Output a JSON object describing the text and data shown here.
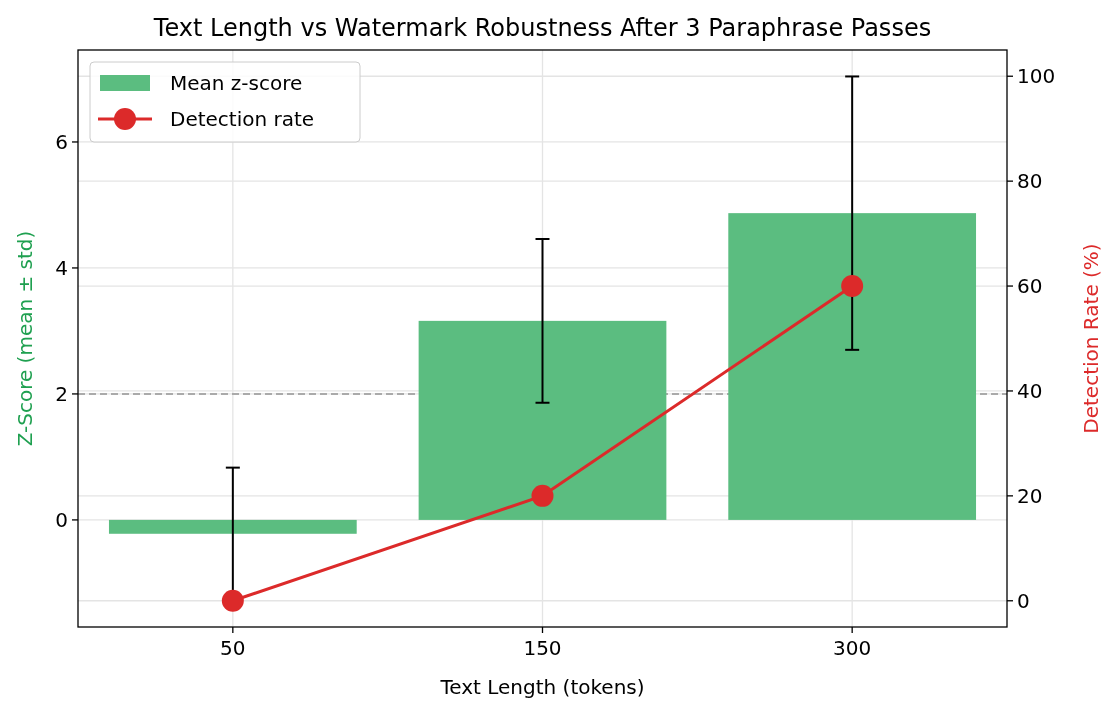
{
  "chart_data": {
    "type": "bar",
    "title": "Text Length vs Watermark Robustness After 3 Paraphrase Passes",
    "xlabel": "Text Length (tokens)",
    "ylabel": "Z-Score (mean ± std)",
    "y2label": "Detection Rate (%)",
    "categories": [
      "50",
      "150",
      "300"
    ],
    "series": [
      {
        "name": "Mean z-score",
        "color": "#5bbd80",
        "values": [
          -0.22,
          3.16,
          4.87
        ],
        "errors": [
          1.05,
          1.3,
          2.17
        ]
      },
      {
        "name": "Detection rate",
        "type": "line",
        "axis": "y2",
        "color": "#dc2a2a",
        "values": [
          0,
          20,
          60
        ],
        "marker": "circle"
      }
    ],
    "ylim": [
      -1.7,
      7.46
    ],
    "yticks": [
      0,
      2,
      4,
      6
    ],
    "y2lim": [
      -5,
      105
    ],
    "y2ticks": [
      0,
      20,
      40,
      60,
      80,
      100
    ],
    "ref_lines": [
      {
        "axis": "y",
        "value": 2,
        "color": "#aaaaaa",
        "line_style": "dashed"
      }
    ],
    "grid": true,
    "legend": "top left"
  }
}
